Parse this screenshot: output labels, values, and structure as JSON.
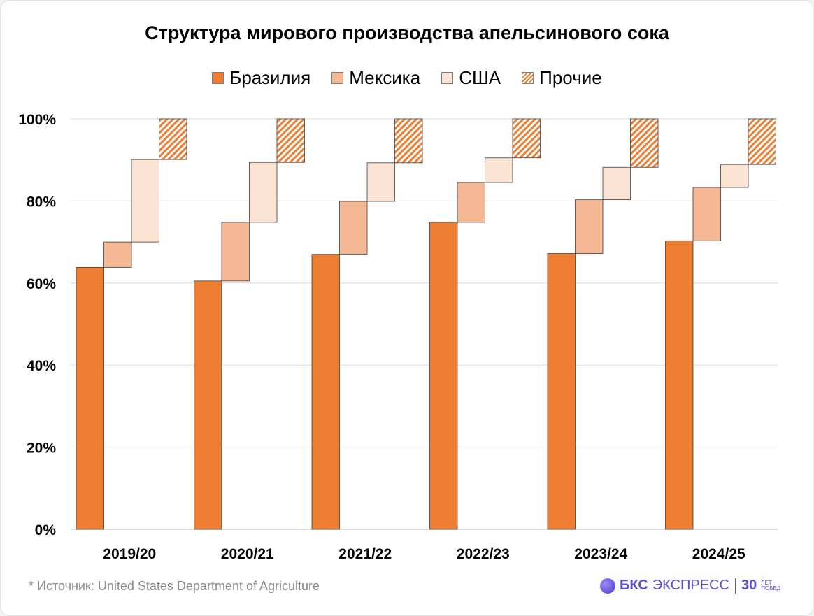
{
  "colors": {
    "brazil": "#ed7d31",
    "mexico": "#f4b994",
    "usa": "#fbe3d4",
    "others_hatch": "#ed7d31",
    "brand": "#5b4fd6"
  },
  "footer": {
    "source": "*  Источник: United States Department of Agriculture",
    "brand_name": "БКС",
    "brand_suffix": "ЭКСПРЕСС",
    "brand_30": "30",
    "brand_small_1": "ЛЕТ",
    "brand_small_2": "ПОБЕД"
  },
  "chart_data": {
    "type": "bar",
    "subtype": "stacked-waterfall",
    "title": "Структура мирового производства апельсинового сока",
    "categories": [
      "2019/20",
      "2020/21",
      "2021/22",
      "2022/23",
      "2023/24",
      "2024/25"
    ],
    "series": [
      {
        "name": "Бразилия",
        "values": [
          63.8,
          60.5,
          67.0,
          74.8,
          67.2,
          70.3
        ]
      },
      {
        "name": "Мексика",
        "values": [
          6.2,
          14.3,
          12.9,
          9.7,
          13.1,
          13.0
        ]
      },
      {
        "name": "США",
        "values": [
          20.1,
          14.6,
          9.4,
          6.0,
          7.9,
          5.6
        ]
      },
      {
        "name": "Прочие",
        "values": [
          9.9,
          10.6,
          10.7,
          9.5,
          11.8,
          11.1
        ]
      }
    ],
    "ylim": [
      0,
      100
    ],
    "yticks": [
      "0%",
      "20%",
      "40%",
      "60%",
      "80%",
      "100%"
    ],
    "ytick_values": [
      0,
      20,
      40,
      60,
      80,
      100
    ],
    "grid": true,
    "legend_position": "top"
  }
}
